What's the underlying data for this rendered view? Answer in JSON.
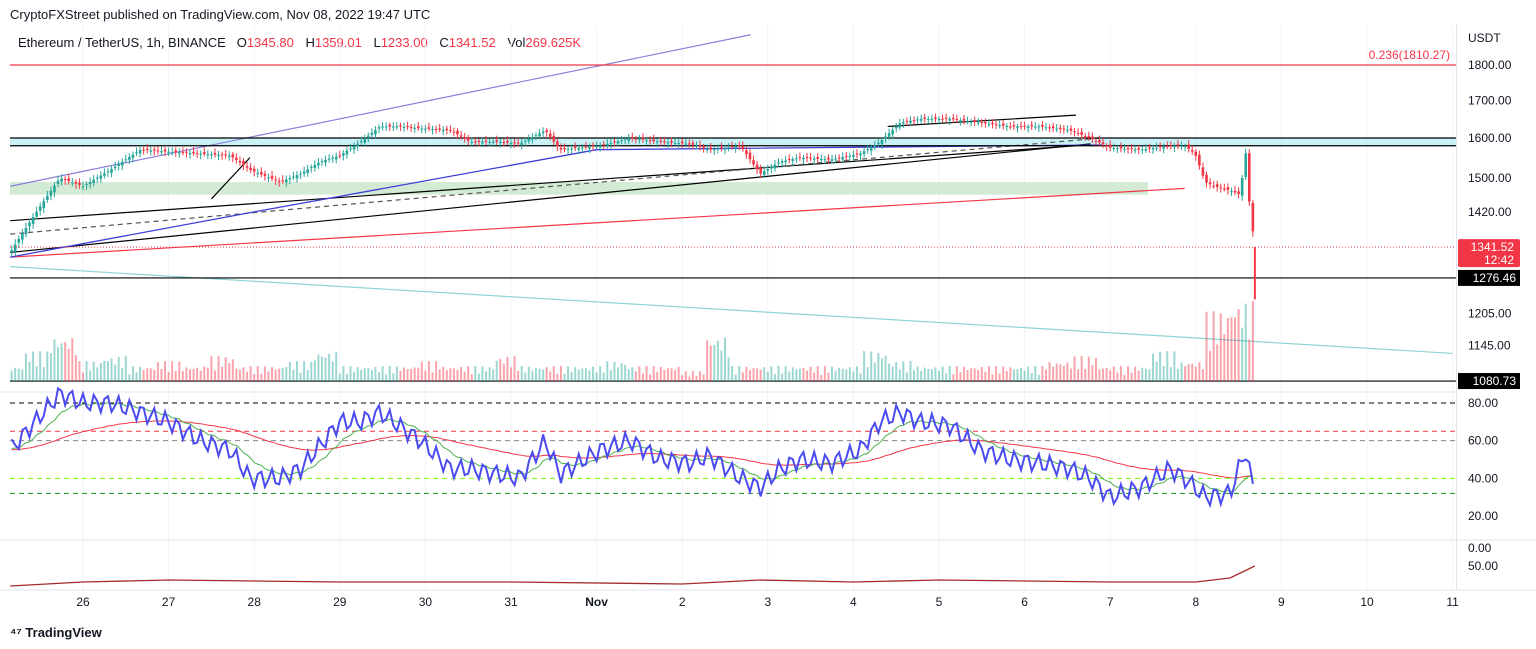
{
  "header": {
    "published": "CryptoFXStreet published on TradingView.com, Nov 08, 2022 19:47 UTC"
  },
  "legend": {
    "symbol": "Ethereum / TetherUS, 1h, BINANCE",
    "o_label": "O",
    "o": "1345.80",
    "h_label": "H",
    "h": "1359.01",
    "l_label": "L",
    "l": "1233.00",
    "c_label": "C",
    "c": "1341.52",
    "vol_label": "Vol",
    "vol": "269.625K"
  },
  "logo": "TradingView",
  "colors": {
    "up": "#26a69a",
    "down": "#f23645",
    "rsi": "#4b4bf0",
    "rsi_ma": "#4caf50",
    "ma_red": "#f23645",
    "zone_cyan": "#b2ebf2",
    "zone_green": "#c8e6c9"
  },
  "chart_data": {
    "type": "candlestick",
    "title": "Ethereum / TetherUS, 1h, BINANCE",
    "currency": "USDT",
    "x_unit": "days since Oct 25 00:00",
    "x_ticks": [
      "26",
      "27",
      "28",
      "29",
      "30",
      "31",
      "Nov",
      "2",
      "3",
      "4",
      "5",
      "6",
      "7",
      "8",
      "9",
      "10",
      "11"
    ],
    "price_ticks": [
      "1800.00",
      "1700.00",
      "1600.00",
      "1500.00",
      "1420.00",
      "1205.00",
      "1145.00"
    ],
    "price_scale": "log",
    "ylim": [
      1080.73,
      1880
    ],
    "close_series": [
      [
        0.15,
        1330
      ],
      [
        0.73,
        1500
      ],
      [
        1.0,
        1480
      ],
      [
        1.32,
        1520
      ],
      [
        1.67,
        1570
      ],
      [
        2.0,
        1565
      ],
      [
        2.37,
        1560
      ],
      [
        2.72,
        1555
      ],
      [
        2.95,
        1520
      ],
      [
        3.3,
        1490
      ],
      [
        3.54,
        1510
      ],
      [
        3.77,
        1540
      ],
      [
        4.0,
        1555
      ],
      [
        4.24,
        1590
      ],
      [
        4.47,
        1630
      ],
      [
        4.7,
        1630
      ],
      [
        4.94,
        1625
      ],
      [
        5.29,
        1620
      ],
      [
        5.52,
        1590
      ],
      [
        5.87,
        1590
      ],
      [
        6.1,
        1585
      ],
      [
        6.4,
        1620
      ],
      [
        6.57,
        1570
      ],
      [
        7.04,
        1580
      ],
      [
        7.39,
        1600
      ],
      [
        7.74,
        1590
      ],
      [
        8.09,
        1585
      ],
      [
        8.32,
        1570
      ],
      [
        8.68,
        1580
      ],
      [
        8.91,
        1510
      ],
      [
        9.14,
        1540
      ],
      [
        9.38,
        1550
      ],
      [
        9.73,
        1545
      ],
      [
        10.08,
        1560
      ],
      [
        10.31,
        1590
      ],
      [
        10.55,
        1640
      ],
      [
        10.78,
        1650
      ],
      [
        11.13,
        1650
      ],
      [
        11.48,
        1640
      ],
      [
        11.83,
        1630
      ],
      [
        12.18,
        1630
      ],
      [
        12.53,
        1620
      ],
      [
        12.76,
        1600
      ],
      [
        13.0,
        1575
      ],
      [
        13.35,
        1570
      ],
      [
        13.7,
        1580
      ],
      [
        13.87,
        1580
      ],
      [
        13.99,
        1560
      ],
      [
        14.11,
        1490
      ],
      [
        14.22,
        1480
      ],
      [
        14.4,
        1470
      ],
      [
        14.52,
        1460
      ],
      [
        14.58,
        1570
      ],
      [
        14.63,
        1430
      ],
      [
        14.69,
        1341.52
      ]
    ],
    "volume_profile": [
      3,
      6,
      9,
      4,
      5,
      3,
      4,
      3,
      5,
      3,
      3,
      4,
      6,
      3,
      3,
      3,
      4,
      3,
      3,
      5,
      3,
      3,
      3,
      4,
      3,
      3,
      2,
      9,
      3,
      3,
      3,
      3,
      3,
      6,
      4,
      3,
      3,
      3,
      3,
      3,
      4,
      5,
      3,
      3,
      6,
      4,
      14,
      16
    ],
    "levels": [
      {
        "price": 1800,
        "label": "0.236(1810.27)",
        "color": "#f23645"
      },
      {
        "price": 1600,
        "color": "#000"
      },
      {
        "price": 1580,
        "color": "#000"
      },
      {
        "price": 1276.46,
        "label": "1276.46",
        "color": "#000"
      },
      {
        "price": 1080.73,
        "label": "1080.73",
        "color": "#000"
      }
    ],
    "last_price": {
      "value": "1341.52",
      "countdown": "12:42"
    },
    "rsi": {
      "ticks": [
        "80.00",
        "60.00",
        "40.00",
        "20.00"
      ],
      "levels": [
        80,
        65,
        60,
        40,
        32
      ],
      "values": [
        [
          0.15,
          55
        ],
        [
          0.73,
          85
        ],
        [
          1.0,
          80
        ],
        [
          1.32,
          80
        ],
        [
          1.67,
          75
        ],
        [
          2.0,
          70
        ],
        [
          2.37,
          60
        ],
        [
          2.72,
          55
        ],
        [
          2.95,
          40
        ],
        [
          3.3,
          40
        ],
        [
          3.54,
          45
        ],
        [
          4.0,
          70
        ],
        [
          4.24,
          70
        ],
        [
          4.47,
          75
        ],
        [
          4.94,
          60
        ],
        [
          5.29,
          45
        ],
        [
          5.52,
          45
        ],
        [
          5.87,
          42
        ],
        [
          6.1,
          40
        ],
        [
          6.4,
          60
        ],
        [
          6.57,
          42
        ],
        [
          7.04,
          55
        ],
        [
          7.39,
          60
        ],
        [
          7.74,
          50
        ],
        [
          8.09,
          48
        ],
        [
          8.32,
          52
        ],
        [
          8.68,
          40
        ],
        [
          8.91,
          35
        ],
        [
          9.14,
          45
        ],
        [
          9.38,
          50
        ],
        [
          9.73,
          48
        ],
        [
          10.08,
          55
        ],
        [
          10.31,
          70
        ],
        [
          10.55,
          75
        ],
        [
          10.78,
          70
        ],
        [
          11.13,
          68
        ],
        [
          11.48,
          55
        ],
        [
          11.83,
          50
        ],
        [
          12.18,
          48
        ],
        [
          12.53,
          45
        ],
        [
          12.76,
          40
        ],
        [
          13.0,
          30
        ],
        [
          13.35,
          35
        ],
        [
          13.7,
          45
        ],
        [
          13.87,
          40
        ],
        [
          14.11,
          30
        ],
        [
          14.4,
          32
        ],
        [
          14.58,
          55
        ],
        [
          14.69,
          30
        ]
      ]
    },
    "lower_indicator": {
      "ticks": [
        "0.00",
        "50.00"
      ],
      "values": [
        [
          0.15,
          40
        ],
        [
          1.0,
          42
        ],
        [
          2.0,
          43
        ],
        [
          4.0,
          42
        ],
        [
          6.0,
          42
        ],
        [
          8.0,
          41
        ],
        [
          8.91,
          43
        ],
        [
          10.0,
          42
        ],
        [
          11.0,
          43
        ],
        [
          13.0,
          42
        ],
        [
          14.0,
          42
        ],
        [
          14.4,
          44
        ],
        [
          14.69,
          50
        ]
      ]
    }
  }
}
